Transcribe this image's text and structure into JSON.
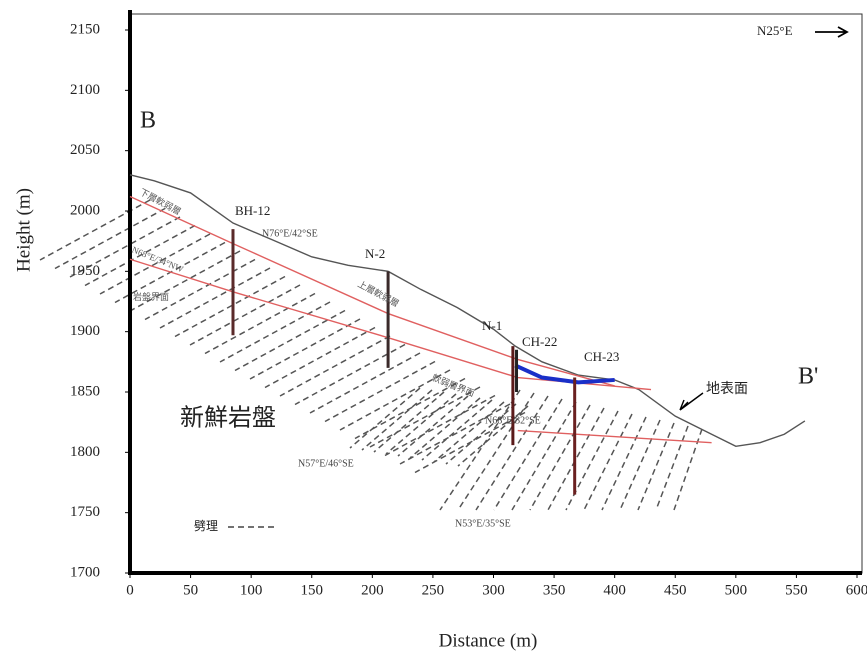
{
  "chart_data": {
    "type": "line",
    "xlabel": "Distance (m)",
    "ylabel": "Height (m)",
    "xlim": [
      0,
      600
    ],
    "xticks": [
      0,
      50,
      100,
      150,
      200,
      250,
      300,
      350,
      400,
      450,
      500,
      550,
      600
    ],
    "ylim": [
      1700,
      2150
    ],
    "yticks": [
      1700,
      1750,
      1800,
      1850,
      1900,
      1950,
      2000,
      2050,
      2100,
      2150
    ],
    "series": [
      {
        "color": "#555555",
        "x": [
          0,
          20,
          50,
          85,
          120,
          150,
          180,
          213,
          240,
          270,
          300,
          318,
          340,
          370,
          400,
          420,
          450,
          480,
          500,
          520,
          540,
          557
        ],
        "values": [
          2030,
          2025,
          2015,
          1990,
          1975,
          1962,
          1955,
          1950,
          1935,
          1920,
          1902,
          1888,
          1875,
          1864,
          1860,
          1852,
          1830,
          1815,
          1805,
          1808,
          1815,
          1826
        ]
      },
      {
        "color": "#e06060",
        "x": [
          0,
          85,
          213,
          320,
          400
        ],
        "values": [
          2012,
          1973,
          1915,
          1877,
          1855
        ]
      },
      {
        "color": "#e06060",
        "x": [
          0,
          85,
          213,
          320,
          430
        ],
        "values": [
          1960,
          1933,
          1895,
          1862,
          1852
        ]
      },
      {
        "color": "#e06060",
        "x": [
          320,
          480
        ],
        "values": [
          1818,
          1808
        ]
      },
      {
        "color": "#1a2fc8",
        "x": [
          318,
          340,
          370,
          400
        ],
        "values": [
          1872,
          1862,
          1858,
          1860
        ]
      }
    ],
    "boreholes": [
      {
        "label": "BH-12",
        "x": 85,
        "top": 1985,
        "bottom": 1897,
        "color": "#5a2a2a"
      },
      {
        "label": "N-2",
        "x": 213,
        "top": 1950,
        "bottom": 1870,
        "color": "#3a2a2a"
      },
      {
        "label": "N-1",
        "x": 316,
        "top": 1888,
        "bottom": 1806,
        "color": "#5a1a1a"
      },
      {
        "label": "CH-22",
        "x": 319,
        "top": 1885,
        "bottom": 1850,
        "color": "#222222"
      },
      {
        "label": "CH-23",
        "x": 367,
        "top": 1862,
        "bottom": 1765,
        "color": "#6a2020"
      }
    ],
    "annotations": [
      "B",
      "B'",
      "N25°E",
      "N76°E/42°SE",
      "N68°E/34°NW",
      "N57°E/46°SE",
      "N53°E/35°SE",
      "N68°E/32°SE",
      "新鮮岩盤",
      "地表面",
      "劈理",
      "下層軟弱層",
      "上層軟弱層",
      "岩盤界面",
      "軟弱層界面"
    ]
  }
}
